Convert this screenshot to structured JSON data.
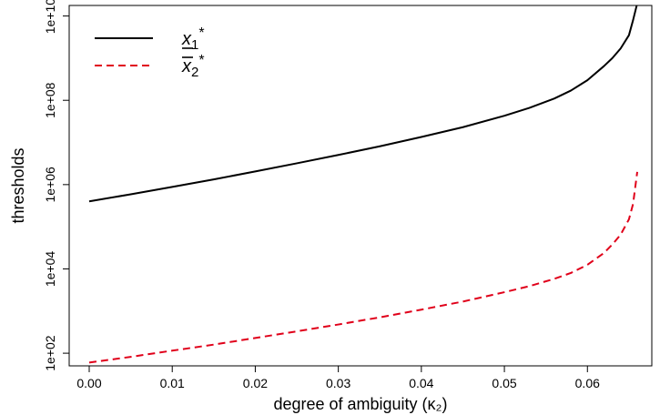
{
  "chart_data": {
    "type": "line",
    "xlabel": "degree of ambiguity (κ₂)",
    "ylabel": "thresholds",
    "y_scale": "log10",
    "xlim": [
      0.0,
      0.066
    ],
    "ylim_log10": [
      1.7,
      10.25
    ],
    "x_ticks": [
      "0.00",
      "0.01",
      "0.02",
      "0.03",
      "0.04",
      "0.05",
      "0.06"
    ],
    "x_tick_values": [
      0.0,
      0.01,
      0.02,
      0.03,
      0.04,
      0.05,
      0.06
    ],
    "y_ticks": [
      "1e+02",
      "1e+04",
      "1e+06",
      "1e+08",
      "1e+10"
    ],
    "y_tick_values": [
      100,
      10000,
      1000000,
      100000000,
      10000000000
    ],
    "legend_position": "top-left",
    "grid": false,
    "series": [
      {
        "name": "x₁*",
        "legend_base": "x",
        "legend_sub": "1",
        "legend_sup": "*",
        "legend_mark": "underline",
        "color": "#000000",
        "dash": "solid",
        "x": [
          0.0,
          0.005,
          0.01,
          0.015,
          0.02,
          0.025,
          0.03,
          0.035,
          0.04,
          0.045,
          0.05,
          0.053,
          0.056,
          0.058,
          0.06,
          0.062,
          0.063,
          0.064,
          0.065,
          0.0655,
          0.066
        ],
        "y": [
          400000,
          590000,
          880000,
          1330000,
          2050000,
          3200000,
          5050000,
          8100000,
          13500000,
          23000000,
          43000000,
          66000000,
          110000000,
          170000000,
          300000000,
          650000000,
          1000000000,
          1700000000,
          3500000000,
          8000000000,
          20000000000
        ]
      },
      {
        "name": "x̄₂*",
        "legend_base": "x",
        "legend_sub": "2",
        "legend_sup": "*",
        "legend_mark": "overline",
        "color": "#e0001a",
        "dash": "dashed",
        "x": [
          0.0,
          0.005,
          0.01,
          0.015,
          0.02,
          0.025,
          0.03,
          0.035,
          0.04,
          0.045,
          0.05,
          0.053,
          0.056,
          0.058,
          0.06,
          0.062,
          0.063,
          0.064,
          0.065,
          0.0655,
          0.066
        ],
        "y": [
          60,
          82,
          115,
          160,
          230,
          330,
          480,
          710,
          1080,
          1680,
          2800,
          3900,
          5800,
          8000,
          12500,
          24000,
          38000,
          65000,
          150000,
          350000,
          2000000
        ]
      }
    ]
  }
}
